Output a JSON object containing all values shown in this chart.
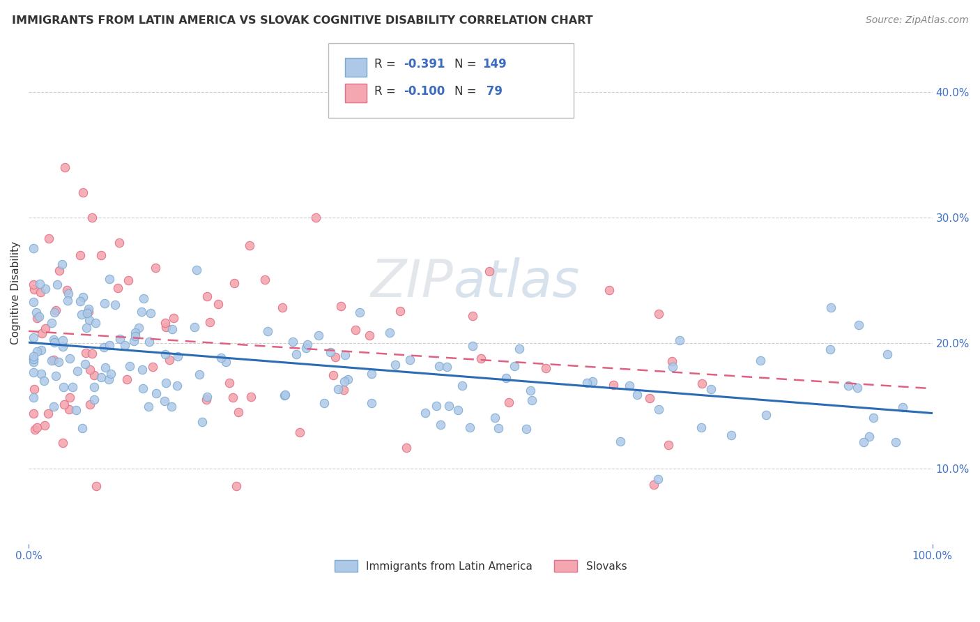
{
  "title": "IMMIGRANTS FROM LATIN AMERICA VS SLOVAK COGNITIVE DISABILITY CORRELATION CHART",
  "source": "Source: ZipAtlas.com",
  "ylabel": "Cognitive Disability",
  "xlim": [
    0.0,
    1.0
  ],
  "ylim": [
    0.04,
    0.44
  ],
  "yticks": [
    0.1,
    0.2,
    0.3,
    0.4
  ],
  "background_color": "#ffffff",
  "grid_color": "#cccccc",
  "blue_dot_color": "#aec8e8",
  "blue_edge_color": "#7aaad0",
  "pink_dot_color": "#f4a7b0",
  "pink_edge_color": "#e07088",
  "blue_line_color": "#2b6cb5",
  "pink_line_color": "#e06080",
  "legend_text_color_black": "#333333",
  "legend_text_color_blue": "#3a6bbf",
  "axis_tick_color": "#4472c4",
  "title_color": "#333333",
  "source_color": "#888888",
  "watermark_zip_color": "#c8d0d8",
  "watermark_atlas_color": "#a8c0d8"
}
